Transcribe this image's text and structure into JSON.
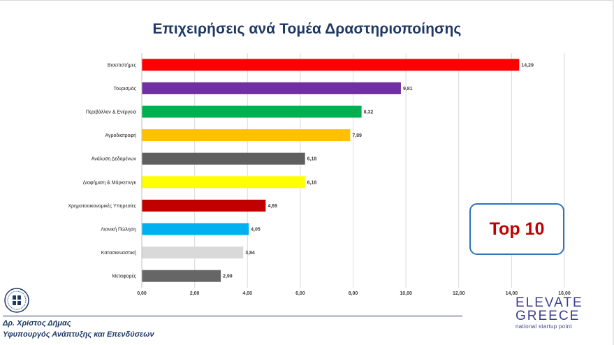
{
  "slide": {
    "title": "Επιχειρήσεις ανά Τομέα Δραστηριοποίησης",
    "badge": "Top 10",
    "footer_author": "Δρ. Χρίστος Δήμας",
    "footer_role": "Υφυπουργός Ανάπτυξης και Επενδύσεων",
    "logo_line1": "ELEVATE",
    "logo_line2": "GREECE",
    "logo_line3": "national startup point"
  },
  "chart_data": {
    "type": "bar",
    "orientation": "horizontal",
    "title": "Επιχειρήσεις ανά Τομέα Δραστηριοποίησης",
    "categories": [
      "Βιοεπιστήμες",
      "Τουρισμός",
      "Περιβάλλον & Ενέργεια",
      "Αγροδιατροφή",
      "Ανάλυση Δεδομένων",
      "Διαφήμιση & Μάρκετινγκ",
      "Χρηματοοικονομικές Υπηρεσίες",
      "Λιανική Πώληση",
      "Κατασκευαστική",
      "Μεταφορές"
    ],
    "values": [
      14.29,
      9.81,
      8.32,
      7.89,
      6.18,
      6.18,
      4.69,
      4.05,
      3.84,
      2.99
    ],
    "value_labels": [
      "14,29",
      "9,81",
      "8,32",
      "7,89",
      "6,18",
      "6,18",
      "4,69",
      "4,05",
      "3,84",
      "2,99"
    ],
    "colors": [
      "#ff0000",
      "#7030a0",
      "#00b050",
      "#ffc000",
      "#5f5f5f",
      "#ffff00",
      "#c00000",
      "#00b0f0",
      "#d9d9d9",
      "#666666"
    ],
    "xlim": [
      0,
      16
    ],
    "xticks": [
      "0,00",
      "2,00",
      "4,00",
      "6,00",
      "8,00",
      "10,00",
      "12,00",
      "14,00",
      "16,00"
    ],
    "xtick_values": [
      0,
      2,
      4,
      6,
      8,
      10,
      12,
      14,
      16
    ],
    "grid": true,
    "legend": "none"
  }
}
